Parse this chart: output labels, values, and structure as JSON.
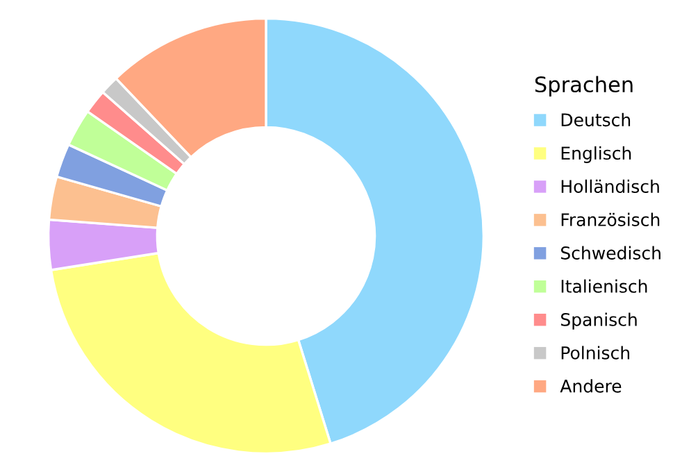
{
  "chart_data": {
    "type": "donut",
    "legend_title": "Sprachen",
    "legend": "right",
    "categories": [
      "Deutsch",
      "Englisch",
      "Holländisch",
      "Französisch",
      "Schwedisch",
      "Italienisch",
      "Spanisch",
      "Polnisch",
      "Andere"
    ],
    "values": [
      45.2,
      27.3,
      3.7,
      3.2,
      2.5,
      2.8,
      1.8,
      1.4,
      12.1
    ],
    "colors": [
      "#8fd8fc",
      "#ffff80",
      "#d8a0f8",
      "#fcc090",
      "#80a0e0",
      "#c0ff98",
      "#ff8c8c",
      "#c8c8c8",
      "#ffa882"
    ]
  }
}
